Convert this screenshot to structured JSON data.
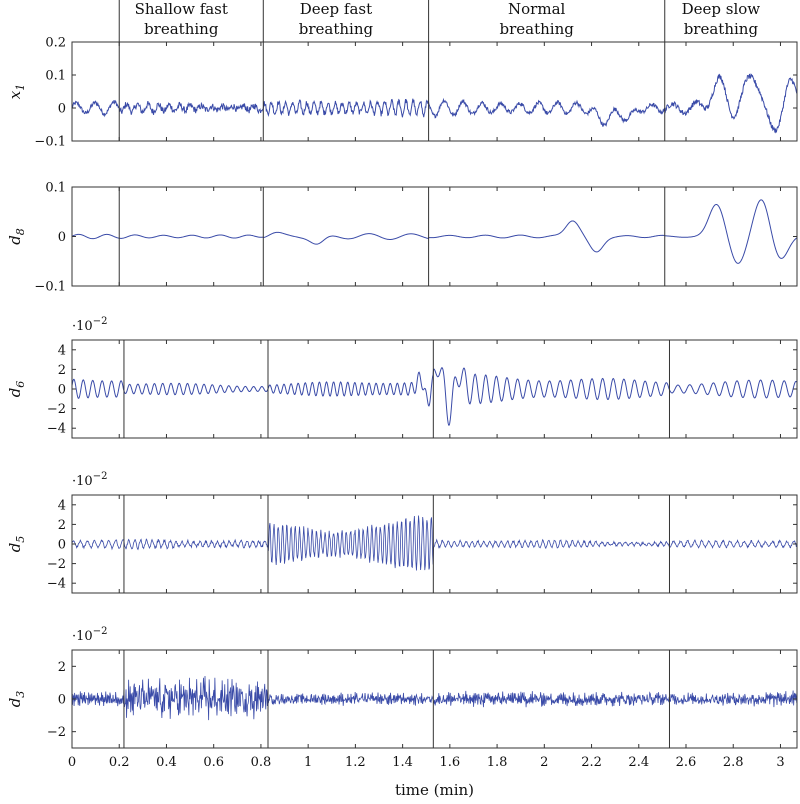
{
  "chart_data": {
    "type": "line",
    "xlabel": "time (min)",
    "xlim": [
      0,
      3.07
    ],
    "x_ticks": [
      0,
      0.2,
      0.4,
      0.6,
      0.8,
      1,
      1.2,
      1.4,
      1.6,
      1.8,
      2,
      2.2,
      2.4,
      2.6,
      2.8,
      3
    ],
    "x_tick_labels": [
      "0",
      "0.2",
      "0.4",
      "0.6",
      "0.8",
      "1",
      "1.2",
      "1.4",
      "1.6",
      "1.8",
      "2",
      "2.2",
      "2.4",
      "2.6",
      "2.8",
      "3"
    ],
    "phases": [
      {
        "label_lines": [
          "Shallow fast",
          "breathing"
        ],
        "boundary": 0.2
      },
      {
        "label_lines": [
          "Deep fast",
          "breathing"
        ],
        "boundary": 0.81
      },
      {
        "label_lines": [
          "Normal",
          "breathing"
        ],
        "boundary": 1.51
      },
      {
        "label_lines": [
          "Deep slow",
          "breathing"
        ],
        "boundary": 2.51
      }
    ],
    "panels": [
      {
        "name": "x1",
        "ylabel_main": "x",
        "ylabel_sub": "1",
        "ylim": [
          -0.1,
          0.2
        ],
        "yticks": [
          -0.1,
          0,
          0.1,
          0.2
        ],
        "ytick_labels": [
          "−0.1",
          "0",
          "0.1",
          "0.2"
        ],
        "multiplier": "",
        "boundaries": [
          0.2,
          0.81,
          1.51,
          2.51
        ],
        "segments": [
          {
            "x0": 0.0,
            "x1": 0.2,
            "base_period": 0.08,
            "amp": 0.02,
            "noise": 0.006
          },
          {
            "x0": 0.2,
            "x1": 0.81,
            "base_period": 0.045,
            "amp": 0.012,
            "noise": 0.01
          },
          {
            "x0": 0.81,
            "x1": 1.51,
            "base_period": 0.03,
            "amp": 0.022,
            "noise": 0.008
          },
          {
            "x0": 1.51,
            "x1": 2.51,
            "base_period": 0.08,
            "amp": 0.022,
            "noise": 0.006
          },
          {
            "x0": 2.51,
            "x1": 3.07,
            "base_period": 0.1,
            "amp": 0.02,
            "noise": 0.008
          }
        ],
        "events": [
          {
            "x": 2.25,
            "amp": -0.04,
            "width": 0.04
          },
          {
            "x": 2.35,
            "amp": -0.03,
            "width": 0.04
          },
          {
            "x": 2.75,
            "amp": 0.09,
            "width": 0.05
          },
          {
            "x": 2.8,
            "amp": -0.05,
            "width": 0.05
          },
          {
            "x": 2.88,
            "amp": 0.11,
            "width": 0.05
          },
          {
            "x": 2.97,
            "amp": -0.07,
            "width": 0.05
          },
          {
            "x": 3.04,
            "amp": 0.08,
            "width": 0.04
          }
        ]
      },
      {
        "name": "d8",
        "ylabel_main": "d",
        "ylabel_sub": "8",
        "ylim": [
          -0.1,
          0.1
        ],
        "yticks": [
          -0.1,
          0,
          0.1
        ],
        "ytick_labels": [
          "−0.1",
          "0",
          "0.1"
        ],
        "multiplier": "",
        "boundaries": [
          0.2,
          0.81,
          1.51,
          2.51
        ],
        "segments": [
          {
            "x0": 0.0,
            "x1": 0.81,
            "base_period": 0.12,
            "amp": 0.004,
            "noise": 0
          },
          {
            "x0": 0.81,
            "x1": 1.51,
            "base_period": 0.18,
            "amp": 0.006,
            "noise": 0
          },
          {
            "x0": 1.51,
            "x1": 2.51,
            "base_period": 0.15,
            "amp": 0.003,
            "noise": 0
          },
          {
            "x0": 2.51,
            "x1": 3.07,
            "base_period": 0.2,
            "amp": 0.002,
            "noise": 0
          }
        ],
        "events": [
          {
            "x": 0.86,
            "amp": 0.007,
            "width": 0.04
          },
          {
            "x": 1.04,
            "amp": -0.016,
            "width": 0.04
          },
          {
            "x": 2.12,
            "amp": 0.033,
            "width": 0.04
          },
          {
            "x": 2.22,
            "amp": -0.032,
            "width": 0.04
          },
          {
            "x": 2.73,
            "amp": 0.065,
            "width": 0.045
          },
          {
            "x": 2.82,
            "amp": -0.055,
            "width": 0.045
          },
          {
            "x": 2.92,
            "amp": 0.075,
            "width": 0.045
          },
          {
            "x": 3.0,
            "amp": -0.045,
            "width": 0.045
          }
        ]
      },
      {
        "name": "d6",
        "ylabel_main": "d",
        "ylabel_sub": "6",
        "ylim": [
          -5,
          5
        ],
        "yticks": [
          -4,
          -2,
          0,
          2,
          4
        ],
        "ytick_labels": [
          "−4",
          "−2",
          "0",
          "2",
          "4"
        ],
        "multiplier": "·10−2",
        "boundaries": [
          0.22,
          0.83,
          1.53,
          2.53
        ],
        "segments": [
          {
            "x0": 0.0,
            "x1": 0.22,
            "base_period": 0.04,
            "amp": 1.1,
            "noise": 0
          },
          {
            "x0": 0.22,
            "x1": 0.83,
            "base_period": 0.035,
            "amp": 0.6,
            "noise": 0
          },
          {
            "x0": 0.83,
            "x1": 1.53,
            "base_period": 0.03,
            "amp": 0.9,
            "noise": 0
          },
          {
            "x0": 1.53,
            "x1": 2.53,
            "base_period": 0.045,
            "amp": 1.4,
            "noise": 0
          },
          {
            "x0": 2.53,
            "x1": 3.07,
            "base_period": 0.05,
            "amp": 0.9,
            "noise": 0
          }
        ],
        "events": [
          {
            "x": 1.48,
            "amp": 1.6,
            "width": 0.02
          },
          {
            "x": 1.5,
            "amp": -1.6,
            "width": 0.02
          },
          {
            "x": 1.55,
            "amp": 2.6,
            "width": 0.02
          },
          {
            "x": 1.6,
            "amp": -2.4,
            "width": 0.02
          },
          {
            "x": 1.64,
            "amp": 1.8,
            "width": 0.02
          }
        ]
      },
      {
        "name": "d5",
        "ylabel_main": "d",
        "ylabel_sub": "5",
        "ylim": [
          -5,
          5
        ],
        "yticks": [
          -4,
          -2,
          0,
          2,
          4
        ],
        "ytick_labels": [
          "−4",
          "−2",
          "0",
          "2",
          "4"
        ],
        "multiplier": "·10−2",
        "boundaries": [
          0.22,
          0.83,
          1.53,
          2.53
        ],
        "segments": [
          {
            "x0": 0.0,
            "x1": 0.22,
            "base_period": 0.03,
            "amp": 0.4,
            "noise": 0.1
          },
          {
            "x0": 0.22,
            "x1": 0.83,
            "base_period": 0.025,
            "amp": 0.4,
            "noise": 0.15
          },
          {
            "x0": 0.83,
            "x1": 1.53,
            "base_period": 0.018,
            "amp": 2.6,
            "noise": 0.3
          },
          {
            "x0": 1.53,
            "x1": 2.53,
            "base_period": 0.025,
            "amp": 0.35,
            "noise": 0.1
          },
          {
            "x0": 2.53,
            "x1": 3.07,
            "base_period": 0.03,
            "amp": 0.4,
            "noise": 0.1
          }
        ],
        "events": []
      },
      {
        "name": "d3",
        "ylabel_main": "d",
        "ylabel_sub": "3",
        "ylim": [
          -3,
          3
        ],
        "yticks": [
          -2,
          0,
          2
        ],
        "ytick_labels": [
          "−2",
          "0",
          "2"
        ],
        "multiplier": "·10−2",
        "boundaries": [
          0.22,
          0.83,
          1.53,
          2.53
        ],
        "segments": [
          {
            "x0": 0.0,
            "x1": 0.22,
            "base_period": 0.006,
            "amp": 0.3,
            "noise": 0.25
          },
          {
            "x0": 0.22,
            "x1": 0.83,
            "base_period": 0.006,
            "amp": 0.6,
            "noise": 0.9
          },
          {
            "x0": 0.83,
            "x1": 1.53,
            "base_period": 0.006,
            "amp": 0.25,
            "noise": 0.25
          },
          {
            "x0": 1.53,
            "x1": 2.53,
            "base_period": 0.006,
            "amp": 0.25,
            "noise": 0.3
          },
          {
            "x0": 2.53,
            "x1": 3.07,
            "base_period": 0.006,
            "amp": 0.25,
            "noise": 0.3
          }
        ],
        "events": []
      }
    ],
    "line_color": "#3a4ba8",
    "frame_color": "#333333",
    "grid": false
  }
}
